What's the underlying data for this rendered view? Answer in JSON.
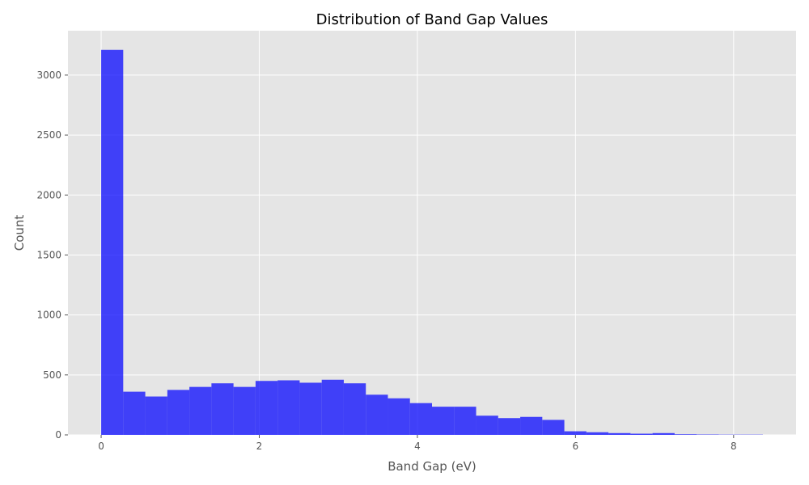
{
  "chart_data": {
    "type": "bar",
    "title": "Distribution of Band Gap Values",
    "xlabel": "Band Gap (eV)",
    "ylabel": "Count",
    "xlim": [
      -0.42,
      8.79
    ],
    "ylim": [
      0,
      3370
    ],
    "x_ticks": [
      0,
      2,
      4,
      6,
      8
    ],
    "y_ticks": [
      0,
      500,
      1000,
      1500,
      2000,
      2500,
      3000
    ],
    "grid": true,
    "legend": "none",
    "bin_edges": [
      0,
      0.279,
      0.558,
      0.837,
      1.116,
      1.395,
      1.674,
      1.953,
      2.232,
      2.511,
      2.79,
      3.069,
      3.348,
      3.627,
      3.906,
      4.185,
      4.464,
      4.743,
      5.022,
      5.301,
      5.58,
      5.859,
      6.138,
      6.417,
      6.696,
      6.975,
      7.254,
      7.533,
      7.812,
      8.091,
      8.37
    ],
    "series": [
      {
        "values": [
          3210,
          360,
          320,
          375,
          400,
          430,
          400,
          450,
          455,
          435,
          460,
          430,
          335,
          305,
          265,
          235,
          235,
          160,
          140,
          150,
          125,
          30,
          22,
          15,
          10,
          15,
          5,
          3,
          2,
          2
        ]
      }
    ],
    "colors": {
      "bar": "#0000ff",
      "bar_opacity": 0.72,
      "plot_background": "#e5e5e5",
      "grid": "#ffffff",
      "page_background": "#ffffff"
    }
  }
}
